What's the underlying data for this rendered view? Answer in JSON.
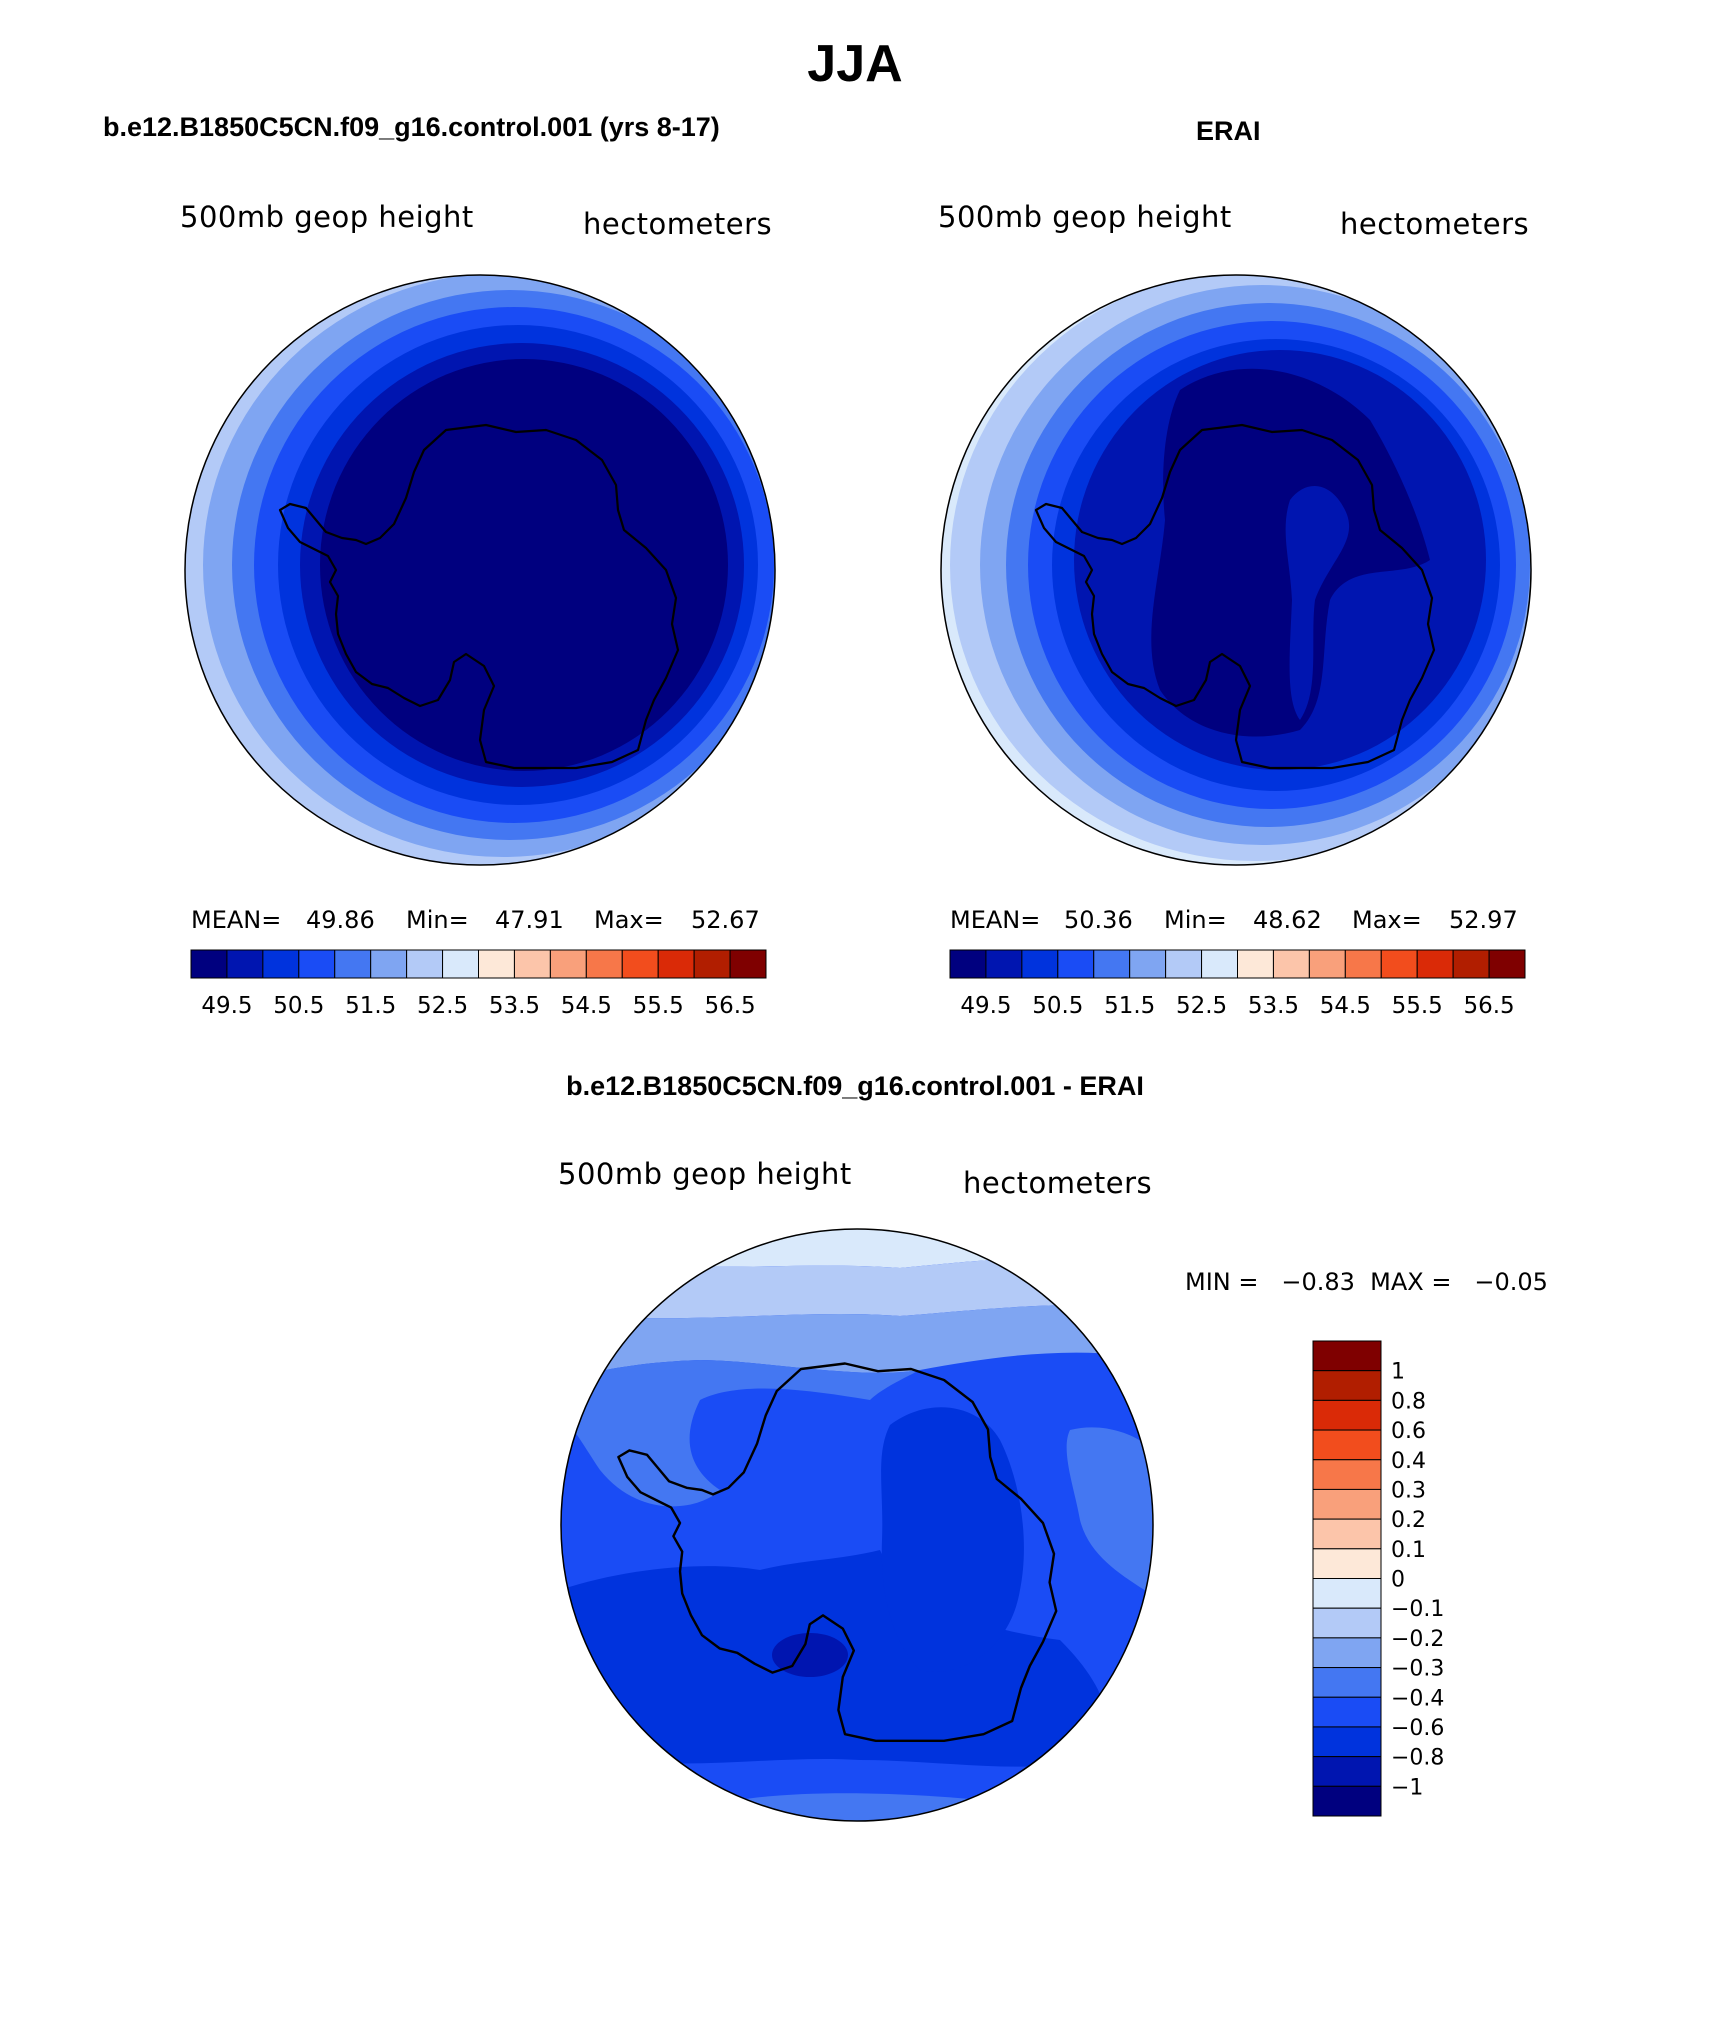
{
  "figure": {
    "title": "JJA"
  },
  "panels": [
    {
      "title": "b.e12.B1850C5CN.f09_g16.control.001 (yrs 8-17)",
      "field_label": "500mb geop height",
      "units_label": "hectometers",
      "stats": {
        "mean_label": "MEAN=",
        "mean": "49.86",
        "min_label": "Min=",
        "min": "47.91",
        "max_label": "Max=",
        "max": "52.67"
      }
    },
    {
      "title": "ERAI",
      "field_label": "500mb geop height",
      "units_label": "hectometers",
      "stats": {
        "mean_label": "MEAN=",
        "mean": "50.36",
        "min_label": "Min=",
        "min": "48.62",
        "max_label": "Max=",
        "max": "52.97"
      }
    },
    {
      "title": "b.e12.B1850C5CN.f09_g16.control.001 - ERAI",
      "field_label": "500mb geop height",
      "units_label": "hectometers",
      "stats": {
        "text": "MIN =   −0.83  MAX =   −0.05"
      }
    }
  ],
  "colorbar_main": {
    "tick_labels": [
      "49.5",
      "50.5",
      "51.5",
      "52.5",
      "53.5",
      "54.5",
      "55.5",
      "56.5"
    ],
    "colors": [
      "#00007f",
      "#0015b0",
      "#0033dd",
      "#1a4cf5",
      "#4477f2",
      "#7fa5f2",
      "#b3caf7",
      "#d9e9fb",
      "#fde8d8",
      "#fcc5aa",
      "#f9a07b",
      "#f77749",
      "#f24d1d",
      "#da2a07",
      "#b11e00",
      "#7f0000"
    ]
  },
  "colorbar_diff": {
    "tick_labels": [
      "1",
      "0.8",
      "0.6",
      "0.4",
      "0.3",
      "0.2",
      "0.1",
      "0",
      "−0.1",
      "−0.2",
      "−0.3",
      "−0.4",
      "−0.6",
      "−0.8",
      "−1"
    ],
    "colors": [
      "#7f0000",
      "#b11e00",
      "#da2a07",
      "#f24d1d",
      "#f77749",
      "#f9a07b",
      "#fcc5aa",
      "#fde8d8",
      "#d9e9fb",
      "#b3caf7",
      "#7fa5f2",
      "#4477f2",
      "#1a4cf5",
      "#0033dd",
      "#0015b0",
      "#00007f"
    ]
  }
}
